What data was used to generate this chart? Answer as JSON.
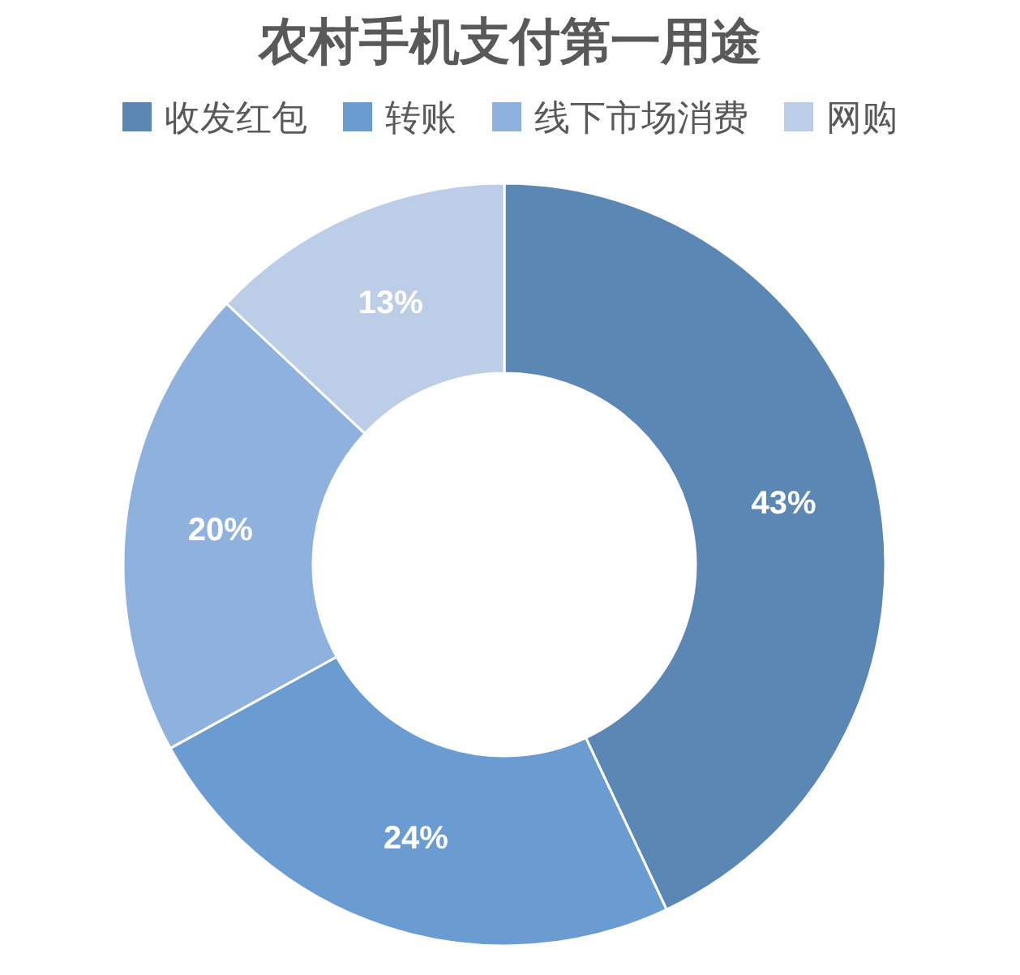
{
  "chart_data": {
    "type": "donut",
    "title": "农村手机支付第一用途",
    "categories": [
      "收发红包",
      "转账",
      "线下市场消费",
      "网购"
    ],
    "values": [
      43,
      24,
      20,
      13
    ],
    "colors": [
      "#5b87b5",
      "#6a9bd1",
      "#8fb1de",
      "#bccde7"
    ],
    "value_labels": [
      "43%",
      "24%",
      "20%",
      "13%"
    ],
    "legend": "top"
  }
}
